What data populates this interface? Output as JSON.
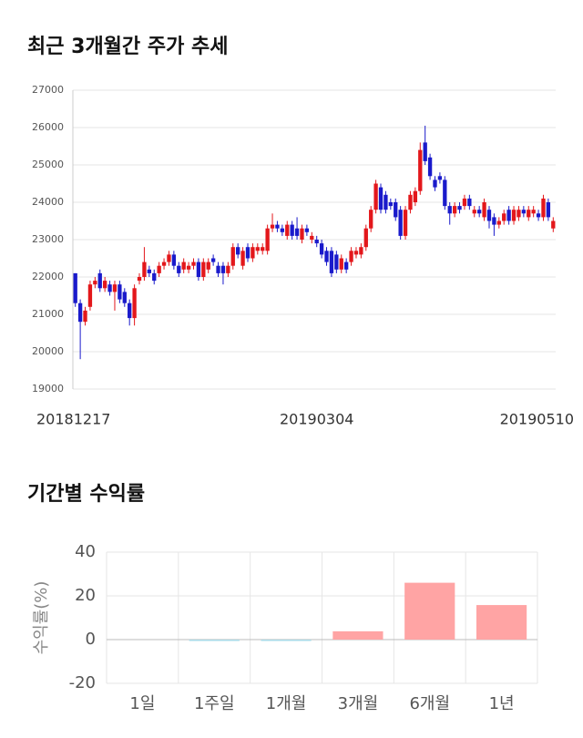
{
  "chart_data": [
    {
      "type": "candlestick",
      "title": "최근 3개월간 주가 추세",
      "categories": [
        "20181217",
        null,
        null,
        null,
        null,
        null,
        null,
        null,
        null,
        null,
        null,
        null,
        null,
        null,
        null,
        null,
        null,
        null,
        null,
        null,
        null,
        null,
        null,
        null,
        null,
        null,
        null,
        null,
        null,
        null,
        null,
        null,
        null,
        null,
        null,
        null,
        null,
        null,
        null,
        null,
        null,
        null,
        null,
        null,
        null,
        null,
        null,
        null,
        null,
        "20190304",
        null,
        null,
        null,
        null,
        null,
        null,
        null,
        null,
        null,
        null,
        null,
        null,
        null,
        null,
        null,
        null,
        null,
        null,
        null,
        null,
        null,
        null,
        null,
        null,
        null,
        null,
        null,
        null,
        null,
        null,
        null,
        null,
        null,
        null,
        null,
        null,
        null,
        null,
        null,
        null,
        null,
        null,
        null,
        null,
        null,
        null,
        null,
        "20190510"
      ],
      "open": [
        22100,
        21300,
        20800,
        21200,
        21800,
        22100,
        21700,
        21800,
        21600,
        21800,
        21600,
        21300,
        20900,
        21900,
        22000,
        22200,
        22100,
        22100,
        22300,
        22400,
        22600,
        22300,
        22200,
        22200,
        22300,
        22400,
        22000,
        22200,
        22500,
        22300,
        22300,
        22100,
        22300,
        22800,
        22300,
        22800,
        22500,
        22700,
        22700,
        22700,
        23300,
        23400,
        23300,
        23100,
        23400,
        23300,
        23000,
        23300,
        23000,
        23000,
        22900,
        22700,
        22700,
        22600,
        22200,
        22400,
        22400,
        22600,
        22600,
        22800,
        23300,
        23800,
        24400,
        24200,
        24000,
        24000,
        23800,
        23100,
        23800,
        24000,
        24300,
        25600,
        25200,
        24600,
        24700,
        24600,
        23900,
        23700,
        23900,
        23900,
        24100,
        23700,
        23800,
        23600,
        23800,
        23600,
        23400,
        23500,
        23800,
        23500,
        23600,
        23800,
        23600,
        23700,
        23700,
        23600,
        24000,
        23300
      ],
      "high": [
        22100,
        21400,
        21200,
        21900,
        22000,
        22200,
        22000,
        21900,
        21900,
        21900,
        21700,
        21400,
        21800,
        22100,
        22800,
        22300,
        22200,
        22400,
        22500,
        22700,
        22700,
        22400,
        22500,
        22400,
        22500,
        22500,
        22500,
        22500,
        22600,
        22400,
        22400,
        22400,
        22900,
        22900,
        22800,
        22900,
        22900,
        22900,
        22900,
        23400,
        23700,
        23500,
        23400,
        23500,
        23500,
        23600,
        23400,
        23400,
        23200,
        23100,
        23000,
        22800,
        22800,
        22700,
        22600,
        22500,
        22800,
        22800,
        22900,
        23400,
        23900,
        24600,
        24500,
        24300,
        24100,
        24100,
        23900,
        23900,
        24300,
        24400,
        25600,
        26050,
        25300,
        24700,
        24800,
        24700,
        24000,
        24000,
        24000,
        24200,
        24200,
        23900,
        23900,
        24100,
        23900,
        23700,
        23600,
        23800,
        23900,
        23900,
        23900,
        23900,
        23900,
        23900,
        23800,
        24200,
        24100,
        23600
      ],
      "low": [
        21200,
        19800,
        20700,
        21100,
        21700,
        21600,
        21600,
        21500,
        21100,
        21300,
        21200,
        20700,
        20700,
        21800,
        21900,
        22000,
        21800,
        22000,
        22200,
        22300,
        22200,
        22000,
        22100,
        22100,
        22200,
        21900,
        21900,
        22100,
        22300,
        22000,
        21800,
        22000,
        22200,
        22500,
        22200,
        22400,
        22400,
        22600,
        22600,
        22600,
        23200,
        23200,
        23100,
        23000,
        23000,
        23000,
        22900,
        23100,
        22900,
        22800,
        22500,
        22300,
        22000,
        22100,
        22100,
        22100,
        22300,
        22500,
        22500,
        22700,
        23200,
        23700,
        23700,
        23700,
        23800,
        23500,
        23000,
        23000,
        23700,
        23900,
        24200,
        25000,
        24600,
        24300,
        24500,
        23800,
        23400,
        23600,
        23700,
        23800,
        23800,
        23600,
        23600,
        23500,
        23300,
        23100,
        23300,
        23400,
        23400,
        23400,
        23500,
        23600,
        23500,
        23600,
        23500,
        23500,
        23500,
        23200
      ],
      "close": [
        21300,
        20800,
        21100,
        21800,
        21900,
        21700,
        21900,
        21600,
        21800,
        21400,
        21300,
        20900,
        21700,
        22000,
        22400,
        22100,
        21900,
        22300,
        22400,
        22600,
        22300,
        22100,
        22400,
        22300,
        22400,
        22000,
        22400,
        22400,
        22400,
        22100,
        22100,
        22300,
        22800,
        22600,
        22700,
        22500,
        22800,
        22800,
        22800,
        23300,
        23400,
        23300,
        23200,
        23400,
        23100,
        23100,
        23300,
        23200,
        23100,
        22900,
        22600,
        22400,
        22100,
        22200,
        22500,
        22200,
        22700,
        22700,
        22800,
        23300,
        23800,
        24500,
        23800,
        23800,
        23900,
        23600,
        23100,
        23800,
        24200,
        24300,
        25400,
        25100,
        24700,
        24400,
        24600,
        23900,
        23700,
        23900,
        23800,
        24100,
        23900,
        23800,
        23700,
        24000,
        23500,
        23400,
        23500,
        23700,
        23500,
        23800,
        23800,
        23700,
        23800,
        23800,
        23600,
        24100,
        23600,
        23500
      ],
      "up_color": "#e3171b",
      "down_color": "#1a1acb",
      "ylim": [
        19000,
        27000
      ],
      "yticks": [
        19000,
        20000,
        21000,
        22000,
        23000,
        24000,
        25000,
        26000,
        27000
      ],
      "grid": true
    },
    {
      "type": "bar",
      "title": "기간별 수익률",
      "y_label": "수익률(%)",
      "categories": [
        "1일",
        "1주일",
        "1개월",
        "3개월",
        "6개월",
        "1년"
      ],
      "values": [
        0,
        -0.3,
        -0.5,
        3.8,
        26,
        15.8
      ],
      "positive_color": "#ffa4a4",
      "negative_color": "#a8dbe8",
      "ylim": [
        -20,
        40
      ],
      "yticks": [
        -20,
        0,
        20,
        40
      ],
      "grid": true
    }
  ]
}
